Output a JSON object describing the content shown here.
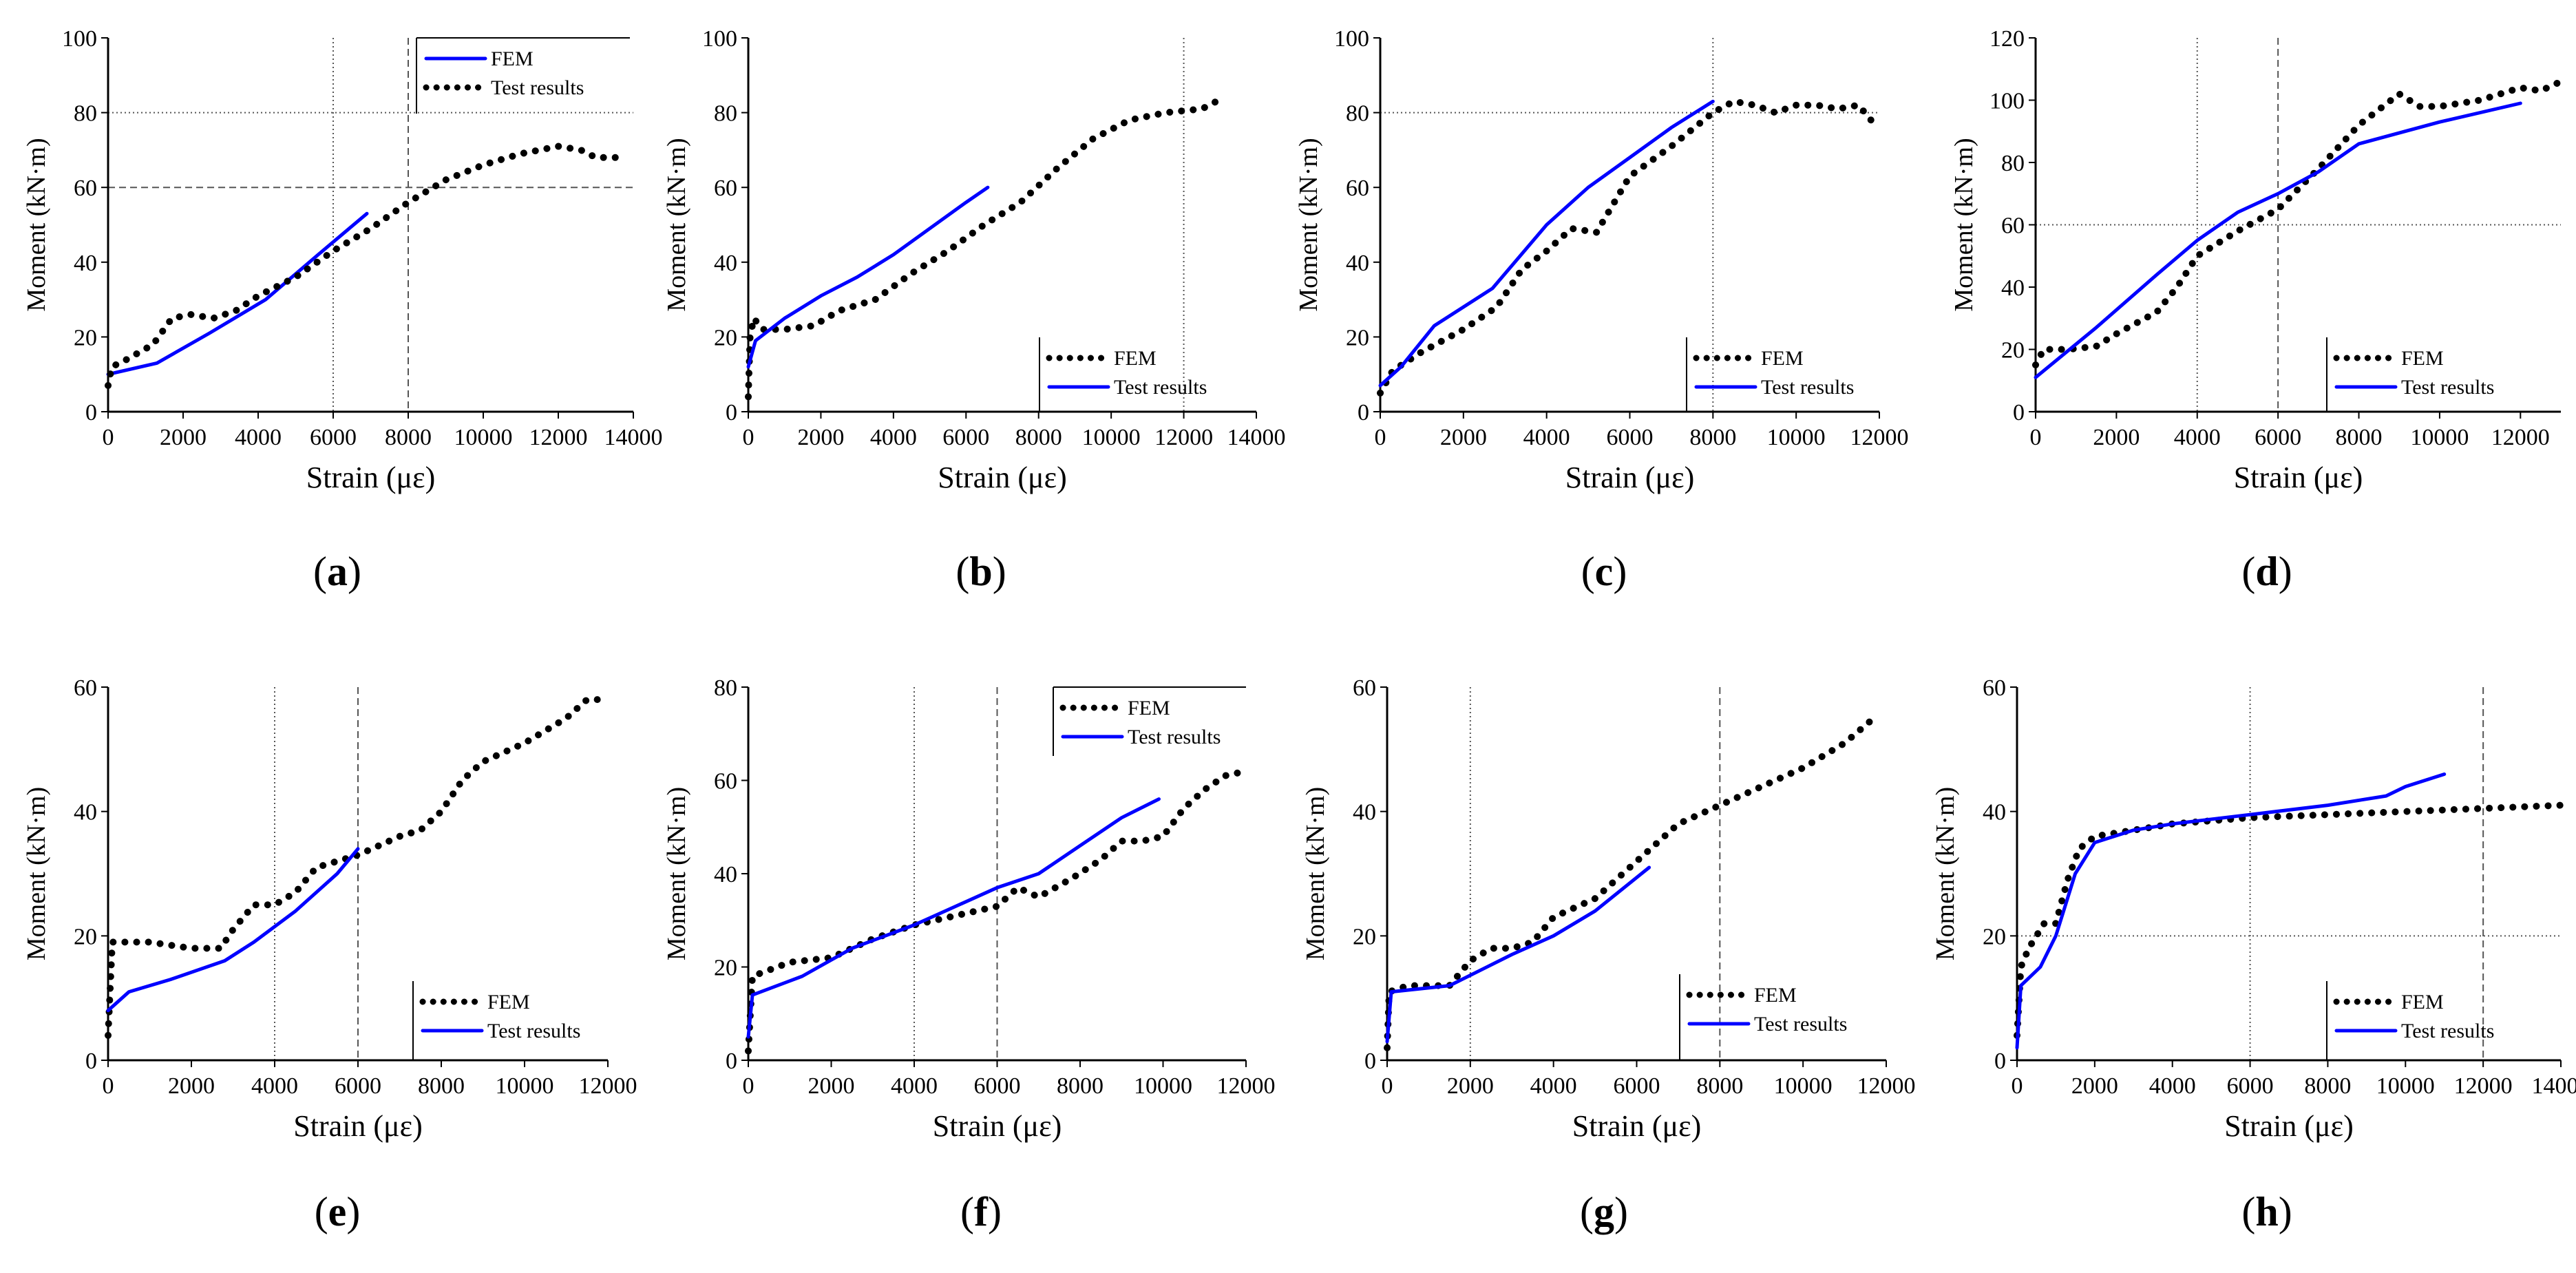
{
  "chart_data": [
    {
      "type": "line",
      "panel": "a",
      "xlabel": "Strain (με)",
      "ylabel": "Moment (kN·m)",
      "xlim": [
        0,
        14000
      ],
      "ylim": [
        0,
        100
      ],
      "xticks": [
        "0",
        "2000",
        "4000",
        "6000",
        "8000",
        "10000",
        "12000",
        "14000"
      ],
      "yticks": [
        "0",
        "20",
        "40",
        "60",
        "80",
        "100"
      ],
      "vgrid": [
        6000,
        8000
      ],
      "hgrid": [
        80,
        60
      ],
      "legend": [
        "FEM",
        "Test results"
      ],
      "series": [
        {
          "name": "FEM",
          "style": "solid",
          "x": [
            0,
            1300,
            2700,
            4200,
            5600,
            6900
          ],
          "y": [
            10,
            13,
            21,
            30,
            42,
            53
          ]
        },
        {
          "name": "Test results",
          "style": "dotted",
          "x": [
            0,
            100,
            500,
            1200,
            1700,
            2200,
            2800,
            3400,
            4000,
            5000,
            6000,
            7000,
            8000,
            9000,
            10000,
            11000,
            12000,
            12600,
            13000,
            13600
          ],
          "y": [
            7,
            12,
            14,
            18,
            25,
            26,
            25,
            27,
            31,
            36,
            43,
            49,
            56,
            62,
            66,
            69,
            71,
            70,
            68,
            68
          ]
        }
      ]
    },
    {
      "type": "line",
      "panel": "b",
      "xlabel": "Strain (με)",
      "ylabel": "Moment (kN·m)",
      "xlim": [
        0,
        14000
      ],
      "ylim": [
        0,
        100
      ],
      "xticks": [
        "0",
        "2000",
        "4000",
        "6000",
        "8000",
        "10000",
        "12000",
        "14000"
      ],
      "yticks": [
        "0",
        "20",
        "40",
        "60",
        "80",
        "100"
      ],
      "vgrid": [
        12000
      ],
      "hgrid": [],
      "legend": [
        "FEM",
        "Test results"
      ],
      "series": [
        {
          "name": "FEM",
          "style": "dotted",
          "x": [
            0,
            50,
            150,
            400,
            1000,
            1800,
            2500,
            3500,
            4500,
            5500,
            6500,
            7500,
            8500,
            9500,
            10500,
            11500,
            12500,
            12900
          ],
          "y": [
            4,
            20,
            25,
            22,
            22,
            23,
            27,
            30,
            37,
            43,
            50,
            56,
            65,
            73,
            78,
            80,
            81,
            83
          ]
        },
        {
          "name": "Test results",
          "style": "solid",
          "x": [
            0,
            200,
            1000,
            2000,
            3000,
            4000,
            5000,
            6000,
            6600
          ],
          "y": [
            12,
            19,
            25,
            31,
            36,
            42,
            49,
            56,
            60
          ]
        }
      ]
    },
    {
      "type": "line",
      "panel": "c",
      "xlabel": "Strain (με)",
      "ylabel": "Moment (kN·m)",
      "xlim": [
        0,
        12000
      ],
      "ylim": [
        0,
        100
      ],
      "xticks": [
        "0",
        "2000",
        "4000",
        "6000",
        "8000",
        "10000",
        "12000"
      ],
      "yticks": [
        "0",
        "20",
        "40",
        "60",
        "80",
        "100"
      ],
      "vgrid": [
        8000
      ],
      "hgrid": [
        80
      ],
      "legend": [
        "FEM",
        "Test results"
      ],
      "series": [
        {
          "name": "FEM",
          "style": "dotted",
          "x": [
            0,
            300,
            1000,
            2000,
            2800,
            3400,
            4000,
            4600,
            5200,
            6000,
            7000,
            8000,
            8500,
            9000,
            9500,
            10000,
            10500,
            11000,
            11500,
            11800
          ],
          "y": [
            5,
            11,
            16,
            22,
            28,
            38,
            43,
            49,
            48,
            63,
            71,
            80,
            83,
            82,
            80,
            82,
            82,
            81,
            82,
            78
          ]
        },
        {
          "name": "Test results",
          "style": "solid",
          "x": [
            0,
            500,
            1300,
            2700,
            4000,
            5000,
            6000,
            7000,
            8000
          ],
          "y": [
            7,
            12,
            23,
            33,
            50,
            60,
            68,
            76,
            83
          ]
        }
      ]
    },
    {
      "type": "line",
      "panel": "d",
      "xlabel": "Strain (με)",
      "ylabel": "Moment (kN·m)",
      "xlim": [
        0,
        13000
      ],
      "ylim": [
        0,
        120
      ],
      "xticks": [
        "0",
        "2000",
        "4000",
        "6000",
        "8000",
        "10000",
        "12000"
      ],
      "yticks": [
        "0",
        "20",
        "40",
        "60",
        "80",
        "100",
        "120"
      ],
      "vgrid": [
        4000,
        6000
      ],
      "hgrid": [
        60
      ],
      "legend": [
        "FEM",
        "Test results"
      ],
      "series": [
        {
          "name": "FEM",
          "style": "dotted",
          "x": [
            0,
            200,
            800,
            1500,
            2000,
            3000,
            3500,
            4000,
            5000,
            6000,
            7000,
            8000,
            9000,
            9500,
            10000,
            11000,
            12000,
            12500,
            13000
          ],
          "y": [
            15,
            20,
            20,
            21,
            25,
            32,
            40,
            50,
            58,
            65,
            78,
            92,
            102,
            98,
            98,
            100,
            104,
            103,
            106
          ]
        },
        {
          "name": "Test results",
          "style": "solid",
          "x": [
            0,
            1500,
            3000,
            4000,
            5000,
            6000,
            7000,
            8000,
            10000,
            12000
          ],
          "y": [
            11,
            27,
            44,
            55,
            64,
            70,
            77,
            86,
            93,
            99
          ]
        }
      ]
    },
    {
      "type": "line",
      "panel": "e",
      "xlabel": "Strain (με)",
      "ylabel": "Moment (kN·m)",
      "xlim": [
        0,
        12000
      ],
      "ylim": [
        0,
        60
      ],
      "xticks": [
        "0",
        "2000",
        "4000",
        "6000",
        "8000",
        "10000",
        "12000"
      ],
      "yticks": [
        "0",
        "20",
        "40",
        "60"
      ],
      "vgrid": [
        4000,
        6000
      ],
      "hgrid": [],
      "legend": [
        "FEM",
        "Test results"
      ],
      "series": [
        {
          "name": "FEM",
          "style": "dotted",
          "x": [
            0,
            100,
            1000,
            2000,
            2700,
            3000,
            3500,
            4000,
            4500,
            5000,
            6000,
            7000,
            7500,
            8000,
            8500,
            9000,
            10000,
            11000,
            11500,
            12000
          ],
          "y": [
            4,
            19,
            19,
            18,
            18,
            21,
            25,
            25,
            27,
            31,
            33,
            36,
            37,
            40,
            45,
            48,
            51,
            55,
            58,
            58
          ]
        },
        {
          "name": "Test results",
          "style": "solid",
          "x": [
            0,
            500,
            1500,
            2800,
            3500,
            4500,
            5500,
            6000
          ],
          "y": [
            8,
            11,
            13,
            16,
            19,
            24,
            30,
            34
          ]
        }
      ]
    },
    {
      "type": "line",
      "panel": "f",
      "xlabel": "Strain (με)",
      "ylabel": "Moment (kN·m)",
      "xlim": [
        0,
        12000
      ],
      "ylim": [
        0,
        80
      ],
      "xticks": [
        "0",
        "2000",
        "4000",
        "6000",
        "8000",
        "10000",
        "12000"
      ],
      "yticks": [
        "0",
        "20",
        "40",
        "60",
        "80"
      ],
      "vgrid": [
        4000,
        6000
      ],
      "hgrid": [],
      "legend": [
        "FEM",
        "Test results"
      ],
      "series": [
        {
          "name": "FEM",
          "style": "dotted",
          "x": [
            0,
            100,
            1000,
            2000,
            3000,
            4000,
            5000,
            6000,
            6500,
            7000,
            7800,
            8500,
            9000,
            9500,
            10000,
            10500,
            11000,
            11500,
            12000
          ],
          "y": [
            2,
            18,
            21,
            22,
            26,
            29,
            31,
            33,
            37,
            35,
            39,
            43,
            47,
            47,
            48,
            54,
            58,
            61,
            62
          ]
        },
        {
          "name": "Test results",
          "style": "solid",
          "x": [
            0,
            100,
            1300,
            2500,
            4000,
            5000,
            6000,
            7000,
            8000,
            9000,
            9900
          ],
          "y": [
            5,
            14,
            18,
            24,
            29,
            33,
            37,
            40,
            46,
            52,
            56
          ]
        }
      ]
    },
    {
      "type": "line",
      "panel": "g",
      "xlabel": "Strain (με)",
      "ylabel": "Moment (kN·m)",
      "xlim": [
        0,
        12000
      ],
      "ylim": [
        0,
        60
      ],
      "xticks": [
        "0",
        "2000",
        "4000",
        "6000",
        "8000",
        "10000",
        "12000"
      ],
      "yticks": [
        "0",
        "20",
        "40",
        "60"
      ],
      "vgrid": [
        2000,
        8000
      ],
      "hgrid": [],
      "legend": [
        "FEM",
        "Test results"
      ],
      "series": [
        {
          "name": "FEM",
          "style": "dotted",
          "x": [
            0,
            50,
            500,
            1500,
            2000,
            2500,
            3000,
            3500,
            4000,
            5000,
            6000,
            7000,
            8000,
            9000,
            10000,
            11000,
            11700
          ],
          "y": [
            2,
            11,
            12,
            12,
            16,
            18,
            18,
            19,
            23,
            26,
            32,
            38,
            41,
            44,
            47,
            51,
            55
          ]
        },
        {
          "name": "Test results",
          "style": "solid",
          "x": [
            0,
            100,
            1500,
            3000,
            4000,
            5000,
            6300
          ],
          "y": [
            3,
            11,
            12,
            17,
            20,
            24,
            31
          ]
        }
      ]
    },
    {
      "type": "line",
      "panel": "h",
      "xlabel": "Strain (με)",
      "ylabel": "Moment (kN·m)",
      "xlim": [
        0,
        14000
      ],
      "ylim": [
        0,
        60
      ],
      "xticks": [
        "0",
        "2000",
        "4000",
        "6000",
        "8000",
        "10000",
        "12000",
        "14000"
      ],
      "yticks": [
        "0",
        "20",
        "40",
        "60"
      ],
      "vgrid": [
        6000,
        12000
      ],
      "hgrid": [
        20
      ],
      "legend": [
        "FEM",
        "Test results"
      ],
      "series": [
        {
          "name": "FEM",
          "style": "dotted",
          "x": [
            0,
            100,
            300,
            700,
            1000,
            1300,
            1600,
            2000,
            3000,
            4000,
            6000,
            8000,
            10000,
            12000,
            14000
          ],
          "y": [
            4,
            15,
            18,
            22,
            22,
            29,
            34,
            36,
            37,
            38,
            39,
            39.5,
            40,
            40.5,
            41
          ]
        },
        {
          "name": "Test results",
          "style": "solid",
          "x": [
            0,
            100,
            600,
            1000,
            1500,
            2000,
            3000,
            4000,
            6000,
            8000,
            9500,
            10000,
            10500,
            11000
          ],
          "y": [
            2,
            12,
            15,
            20,
            30,
            35,
            37,
            38,
            39.5,
            41,
            42.5,
            44,
            45,
            46
          ]
        }
      ]
    }
  ],
  "panel_labels": [
    "(a)",
    "(b)",
    "(c)",
    "(d)",
    "(e)",
    "(f)",
    "(g)",
    "(h)"
  ],
  "colors": {
    "solid_series": "#0000ff",
    "dotted_series": "#000000",
    "grid": "#555555"
  }
}
